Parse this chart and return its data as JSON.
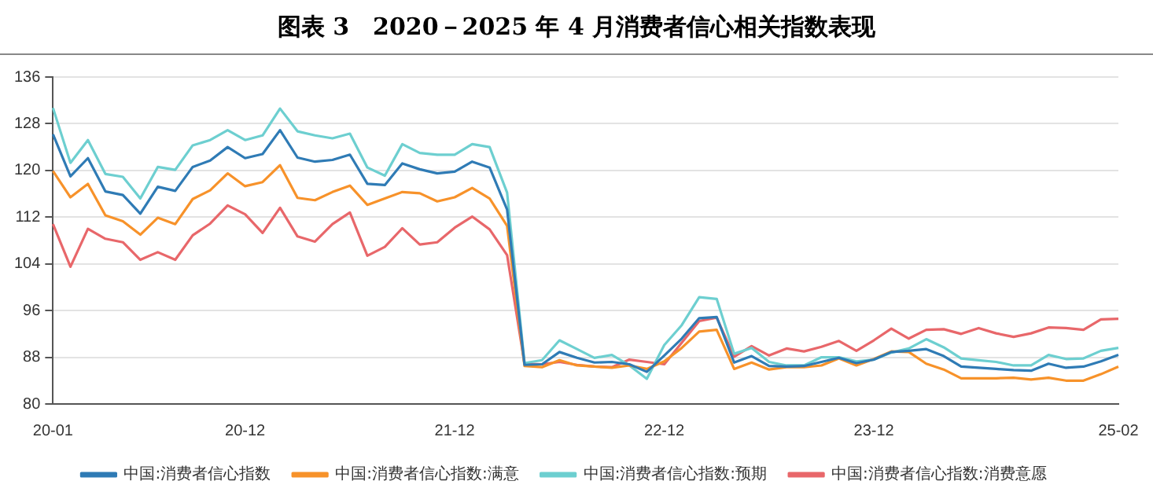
{
  "chart_data": {
    "type": "line",
    "title": "图表 3　2020－2025 年 4 月消费者信心相关指数表现",
    "categories": [
      "20-01",
      null,
      null,
      null,
      null,
      null,
      null,
      null,
      null,
      null,
      null,
      "20-12",
      null,
      null,
      null,
      null,
      null,
      null,
      null,
      null,
      null,
      null,
      null,
      "21-12",
      null,
      null,
      null,
      null,
      null,
      null,
      null,
      null,
      null,
      null,
      null,
      "22-12",
      null,
      null,
      null,
      null,
      null,
      null,
      null,
      null,
      null,
      null,
      null,
      "23-12",
      null,
      null,
      null,
      null,
      null,
      null,
      null,
      null,
      null,
      null,
      null,
      null,
      null,
      "25-02"
    ],
    "series": [
      {
        "name": "中国:消费者信心指数",
        "color": "#2f7bb5",
        "values": [
          126.2,
          119.0,
          122.1,
          116.4,
          115.8,
          112.6,
          117.2,
          116.5,
          120.6,
          121.7,
          124.0,
          122.1,
          122.8,
          126.9,
          122.2,
          121.5,
          121.8,
          122.7,
          117.7,
          117.5,
          121.2,
          120.2,
          119.5,
          119.8,
          121.5,
          120.5,
          113.3,
          86.7,
          86.8,
          88.9,
          87.9,
          87.1,
          87.2,
          86.8,
          85.5,
          88.3,
          91.2,
          94.7,
          94.9,
          87.1,
          88.2,
          86.5,
          86.4,
          86.5,
          87.2,
          87.9,
          87.0,
          87.6,
          88.9,
          89.1,
          89.4,
          88.2,
          86.4,
          86.2,
          86.0,
          85.8,
          85.7,
          86.9,
          86.2,
          86.4,
          87.3,
          88.4
        ]
      },
      {
        "name": "中国:消费者信心指数:满意",
        "color": "#f7922a",
        "values": [
          119.9,
          115.4,
          117.7,
          112.3,
          111.3,
          109.0,
          111.9,
          110.8,
          115.1,
          116.6,
          119.5,
          117.3,
          118.0,
          120.9,
          115.3,
          114.9,
          116.3,
          117.4,
          114.1,
          115.2,
          116.3,
          116.1,
          114.7,
          115.4,
          117.0,
          115.2,
          110.5,
          86.5,
          86.3,
          87.5,
          86.6,
          86.4,
          86.2,
          86.6,
          86.0,
          87.3,
          89.6,
          92.4,
          92.7,
          86.0,
          87.1,
          85.9,
          86.3,
          86.3,
          86.6,
          87.8,
          86.6,
          87.7,
          89.0,
          88.9,
          86.9,
          85.9,
          84.4,
          84.4,
          84.4,
          84.5,
          84.2,
          84.5,
          84.0,
          84.0,
          85.1,
          86.4
        ]
      },
      {
        "name": "中国:消费者信心指数:预期",
        "color": "#6dcfd0",
        "values": [
          130.7,
          121.3,
          125.2,
          119.4,
          118.9,
          115.2,
          120.6,
          120.1,
          124.3,
          125.2,
          126.9,
          125.2,
          126.0,
          130.6,
          126.7,
          126.0,
          125.5,
          126.3,
          120.5,
          119.1,
          124.5,
          123.0,
          122.7,
          122.7,
          124.5,
          124.0,
          116.2,
          87.0,
          87.5,
          90.9,
          89.4,
          87.9,
          88.4,
          86.6,
          84.3,
          90.1,
          93.5,
          98.3,
          98.0,
          88.6,
          89.6,
          87.2,
          86.6,
          86.6,
          88.0,
          88.0,
          87.3,
          87.6,
          88.8,
          89.5,
          91.1,
          89.7,
          87.8,
          87.5,
          87.2,
          86.6,
          86.6,
          88.4,
          87.7,
          87.8,
          89.1,
          89.6
        ]
      },
      {
        "name": "中国:消费者信心指数:消费意愿",
        "color": "#e8676a",
        "values": [
          110.8,
          103.5,
          110.0,
          108.3,
          107.7,
          104.7,
          106.0,
          104.7,
          108.9,
          110.9,
          114.0,
          112.5,
          109.3,
          113.6,
          108.7,
          107.8,
          110.8,
          112.8,
          105.4,
          106.9,
          110.1,
          107.3,
          107.7,
          110.2,
          112.1,
          109.9,
          105.5,
          86.9,
          86.8,
          87.2,
          86.7,
          86.4,
          86.3,
          87.6,
          87.2,
          86.8,
          90.5,
          94.2,
          94.8,
          88.1,
          89.9,
          88.3,
          89.5,
          89.0,
          89.8,
          90.8,
          89.1,
          90.9,
          92.9,
          91.2,
          92.7,
          92.8,
          92.0,
          93.0,
          92.1,
          91.5,
          92.1,
          93.1,
          93.0,
          92.7,
          94.5,
          94.6
        ]
      }
    ],
    "ylim": [
      80,
      136
    ],
    "yticks": [
      80,
      88,
      96,
      104,
      112,
      120,
      128,
      136
    ],
    "grid": "y",
    "legend": "bottom"
  }
}
